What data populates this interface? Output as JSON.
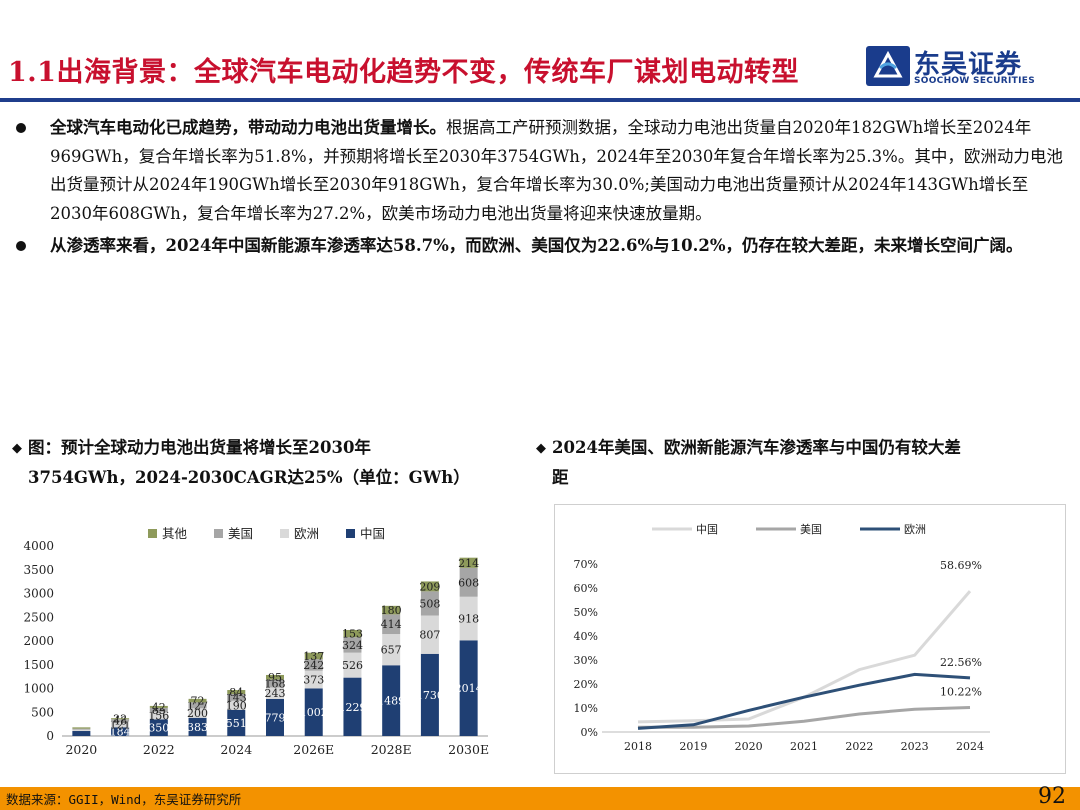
{
  "header": {
    "title": "1.1出海背景：全球汽车电动化趋势不变，传统车厂谋划电动转型",
    "logo_cn": "东吴证券",
    "logo_en": "SOOCHOW SECURITIES"
  },
  "bullets": [
    {
      "bold": "全球汽车电动化已成趋势，带动动力电池出货量增长。",
      "text": "根据高工产研预测数据，全球动力电池出货量自2020年182GWh增长至2024年969GWh，复合年增长率为51.8%，并预期将增长至2030年3754GWh，2024年至2030年复合年增长率为25.3%。其中，欧洲动力电池出货量预计从2024年190GWh增长至2030年918GWh，复合年增长率为30.0%;美国动力电池出货量预计从2024年143GWh增长至2030年608GWh，复合年增长率为27.2%，欧美市场动力电池出货量将迎来快速放量期。"
    },
    {
      "bold": "从渗透率来看，2024年中国新能源车渗透率达58.7%，而欧洲、美国仅为22.6%与10.2%，仍存在较大差距，未来增长空间广阔。",
      "text": ""
    }
  ],
  "figures": {
    "left_title_line1": "图：预计全球动力电池出货量将增长至2030年",
    "left_title_line2": "3754GWh，2024-2030CAGR达25%（单位：GWh）",
    "right_title_line1": "2024年美国、欧洲新能源汽车渗透率与中国仍有较大差",
    "right_title_line2": "距",
    "diamond": "◆"
  },
  "footer": {
    "source": "数据来源：GGII，Wind，东吴证券研究所",
    "page": "92"
  },
  "colors": {
    "title_red": "#c8102e",
    "brand_blue": "#1f3d8c",
    "footer_orange": "#f39200",
    "china_bar": "#1f3f73",
    "europe_bar": "#d9d9d9",
    "us_bar": "#a6a6a6",
    "other_bar": "#8e9a5b",
    "line_china": "#d9d9d9",
    "line_us": "#a6a6a6",
    "line_europe": "#2e5077"
  },
  "chart_data": [
    {
      "type": "bar",
      "stacked": true,
      "categories": [
        "2020",
        "2021",
        "2022",
        "2023",
        "2024",
        "2025E",
        "2026E",
        "2027E",
        "2028E",
        "2029E",
        "2030E"
      ],
      "x_tick_labels": [
        "2020",
        "2022",
        "2024",
        "2026E",
        "2028E",
        "2030E"
      ],
      "ylim": [
        0,
        4000
      ],
      "yticks": [
        0,
        500,
        1000,
        1500,
        2000,
        2500,
        3000,
        3500,
        4000
      ],
      "legend": [
        "其他",
        "美国",
        "欧洲",
        "中国"
      ],
      "legend_position": "top",
      "series": [
        {
          "name": "中国",
          "values": [
            105,
            184,
            350,
            383,
            551,
            779,
            1002,
            1229,
            1489,
            1730,
            2014
          ]
        },
        {
          "name": "欧洲",
          "values": [
            30,
            121,
            156,
            200,
            190,
            243,
            373,
            526,
            657,
            807,
            918
          ]
        },
        {
          "name": "美国",
          "values": [
            20,
            48,
            85,
            127,
            143,
            168,
            242,
            324,
            414,
            508,
            608
          ]
        },
        {
          "name": "其他",
          "values": [
            27,
            22,
            42,
            72,
            84,
            95,
            137,
            153,
            180,
            209,
            214
          ]
        }
      ],
      "value_labels": {
        "中国": [
          "",
          "184",
          "350",
          "383",
          "551",
          "779",
          "1002",
          "1229",
          "1489",
          "1730",
          "2014"
        ],
        "欧洲": [
          "",
          "121",
          "156",
          "200",
          "190",
          "243",
          "373",
          "526",
          "657",
          "807",
          "918"
        ],
        "美国": [
          "",
          "48",
          "85",
          "127",
          "143",
          "168",
          "242",
          "324",
          "414",
          "508",
          "608"
        ],
        "其他": [
          "",
          "22",
          "42",
          "72",
          "84",
          "95",
          "137",
          "153",
          "180",
          "209",
          "214"
        ]
      }
    },
    {
      "type": "line",
      "x": [
        "2018",
        "2019",
        "2020",
        "2021",
        "2022",
        "2023",
        "2024"
      ],
      "ylim": [
        0,
        0.7
      ],
      "yticks": [
        "0%",
        "10%",
        "20%",
        "30%",
        "40%",
        "50%",
        "60%",
        "70%"
      ],
      "legend_position": "top",
      "series": [
        {
          "name": "中国",
          "values": [
            0.042,
            0.047,
            0.054,
            0.145,
            0.26,
            0.32,
            0.5869
          ]
        },
        {
          "name": "美国",
          "values": [
            0.02,
            0.02,
            0.025,
            0.045,
            0.075,
            0.095,
            0.1022
          ]
        },
        {
          "name": "欧洲",
          "values": [
            0.015,
            0.03,
            0.09,
            0.145,
            0.195,
            0.24,
            0.2256
          ]
        }
      ],
      "annotations": [
        {
          "series": "中国",
          "label": "58.69%"
        },
        {
          "series": "欧洲",
          "label": "22.56%"
        },
        {
          "series": "美国",
          "label": "10.22%"
        }
      ]
    }
  ]
}
